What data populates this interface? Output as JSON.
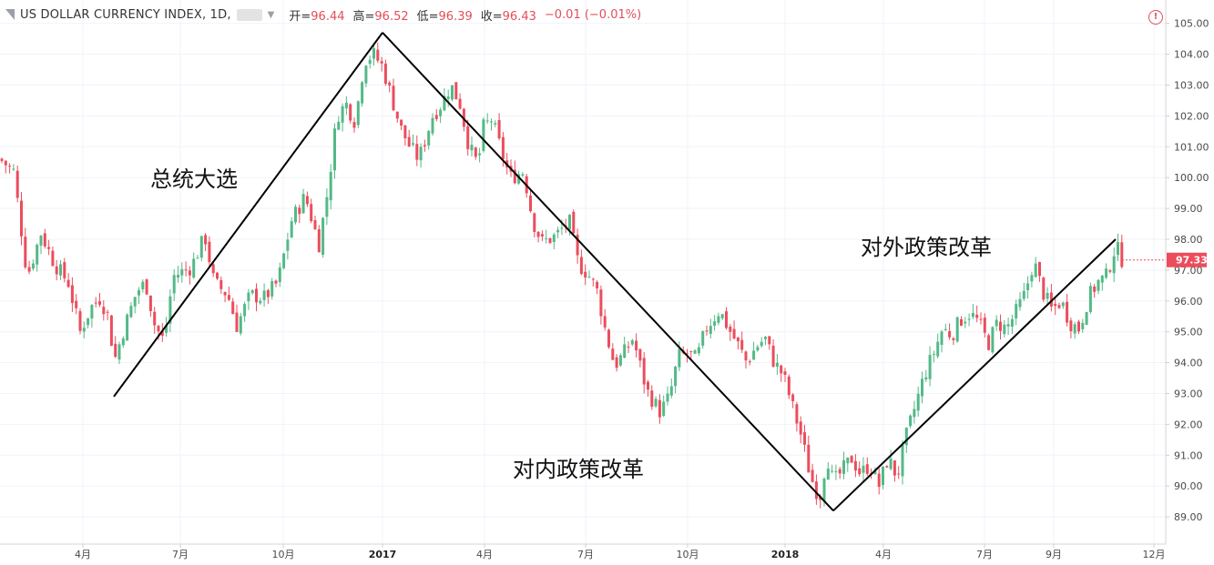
{
  "header": {
    "symbol": "US DOLLAR CURRENCY INDEX, 1D,",
    "open_label": "开=",
    "open": "96.44",
    "high_label": "高=",
    "high": "96.52",
    "low_label": "低=",
    "low": "96.39",
    "close_label": "收=",
    "close": "96.43",
    "change": "−0.01 (−0.01%)"
  },
  "colors": {
    "up": "#53b987",
    "down": "#eb4d5c",
    "grid": "#f0f3fa",
    "price_tag": "#eb4d5c",
    "alert": "#e04f5a",
    "trendline": "#000000"
  },
  "chart_data": {
    "type": "candlestick",
    "symbol": "US DOLLAR CURRENCY INDEX",
    "interval": "1D",
    "last_price": "97.33",
    "ylim": [
      88.5,
      105.3
    ],
    "y_ticks": [
      "105.00",
      "104.00",
      "103.00",
      "102.00",
      "101.00",
      "100.00",
      "99.00",
      "98.00",
      "97.00",
      "96.00",
      "95.00",
      "94.00",
      "93.00",
      "92.00",
      "91.00",
      "90.00",
      "89.00"
    ],
    "x_ticks": [
      "4月",
      "7月",
      "10月",
      "2017",
      "4月",
      "7月",
      "10月",
      "2018",
      "4月",
      "7月",
      "9月",
      "12月"
    ],
    "bold_x_ticks": [
      "2017",
      "2018"
    ],
    "path_points": [
      [
        0,
        100.6
      ],
      [
        15,
        100.2
      ],
      [
        30,
        96.8
      ],
      [
        45,
        98.2
      ],
      [
        60,
        97.2
      ],
      [
        75,
        96.6
      ],
      [
        88,
        95.0
      ],
      [
        100,
        95.8
      ],
      [
        110,
        96.1
      ],
      [
        120,
        95.4
      ],
      [
        125,
        94.0
      ],
      [
        135,
        95.0
      ],
      [
        150,
        96.3
      ],
      [
        160,
        96.6
      ],
      [
        170,
        95.2
      ],
      [
        180,
        94.7
      ],
      [
        190,
        96.8
      ],
      [
        210,
        97.1
      ],
      [
        225,
        98.1
      ],
      [
        235,
        96.6
      ],
      [
        250,
        96.2
      ],
      [
        260,
        95.2
      ],
      [
        275,
        96.2
      ],
      [
        290,
        96.1
      ],
      [
        305,
        96.6
      ],
      [
        320,
        98.6
      ],
      [
        335,
        99.4
      ],
      [
        345,
        98.4
      ],
      [
        350,
        97.8
      ],
      [
        360,
        99.6
      ],
      [
        370,
        102.0
      ],
      [
        380,
        102.4
      ],
      [
        390,
        101.8
      ],
      [
        400,
        103.8
      ],
      [
        410,
        104.0
      ],
      [
        420,
        103.6
      ],
      [
        430,
        102.6
      ],
      [
        440,
        101.6
      ],
      [
        450,
        101.0
      ],
      [
        460,
        100.6
      ],
      [
        475,
        102.0
      ],
      [
        485,
        102.4
      ],
      [
        495,
        103.0
      ],
      [
        505,
        102.4
      ],
      [
        515,
        101.0
      ],
      [
        525,
        100.4
      ],
      [
        530,
        101.6
      ],
      [
        540,
        101.9
      ],
      [
        550,
        100.9
      ],
      [
        560,
        100.0
      ],
      [
        575,
        100.2
      ],
      [
        585,
        98.6
      ],
      [
        595,
        97.9
      ],
      [
        610,
        98.1
      ],
      [
        625,
        98.6
      ],
      [
        635,
        97.2
      ],
      [
        645,
        96.9
      ],
      [
        655,
        96.4
      ],
      [
        665,
        95.0
      ],
      [
        675,
        93.9
      ],
      [
        685,
        94.3
      ],
      [
        695,
        94.8
      ],
      [
        710,
        93.1
      ],
      [
        725,
        92.4
      ],
      [
        735,
        92.9
      ],
      [
        745,
        94.2
      ],
      [
        755,
        94.3
      ],
      [
        765,
        94.1
      ],
      [
        775,
        95.1
      ],
      [
        790,
        95.7
      ],
      [
        800,
        95.1
      ],
      [
        810,
        94.6
      ],
      [
        820,
        94.0
      ],
      [
        830,
        94.5
      ],
      [
        840,
        94.8
      ],
      [
        850,
        94.0
      ],
      [
        860,
        93.6
      ],
      [
        870,
        92.6
      ],
      [
        880,
        91.6
      ],
      [
        890,
        90.3
      ],
      [
        900,
        89.6
      ],
      [
        908,
        91.0
      ],
      [
        915,
        90.1
      ],
      [
        925,
        90.5
      ],
      [
        935,
        90.9
      ],
      [
        945,
        90.4
      ],
      [
        955,
        90.7
      ],
      [
        965,
        90.0
      ],
      [
        975,
        90.9
      ],
      [
        985,
        90.3
      ],
      [
        995,
        91.6
      ],
      [
        1005,
        92.6
      ],
      [
        1015,
        93.6
      ],
      [
        1025,
        94.3
      ],
      [
        1035,
        95.1
      ],
      [
        1045,
        94.9
      ],
      [
        1055,
        95.4
      ],
      [
        1065,
        95.6
      ],
      [
        1075,
        95.3
      ],
      [
        1085,
        94.6
      ],
      [
        1095,
        95.3
      ],
      [
        1105,
        95.1
      ],
      [
        1115,
        95.6
      ],
      [
        1125,
        96.2
      ],
      [
        1135,
        97.3
      ],
      [
        1145,
        96.3
      ],
      [
        1155,
        95.7
      ],
      [
        1165,
        96.0
      ],
      [
        1175,
        95.3
      ],
      [
        1185,
        95.1
      ],
      [
        1195,
        96.1
      ],
      [
        1205,
        96.6
      ],
      [
        1215,
        96.8
      ],
      [
        1225,
        97.8
      ],
      [
        1232,
        97.35
      ]
    ],
    "trendlines": [
      {
        "from": [
          125,
          92.9
        ],
        "to": [
          420,
          104.7
        ]
      },
      {
        "from": [
          420,
          104.7
        ],
        "to": [
          915,
          89.2
        ]
      },
      {
        "from": [
          915,
          89.2
        ],
        "to": [
          1225,
          98.0
        ]
      }
    ],
    "annotations": [
      {
        "text": "总统大选",
        "x": 165,
        "y": 100.0
      },
      {
        "text": "对内政策改革",
        "x": 563,
        "y": 90.6
      },
      {
        "text": "对外政策改革",
        "x": 945,
        "y": 97.8
      }
    ]
  }
}
